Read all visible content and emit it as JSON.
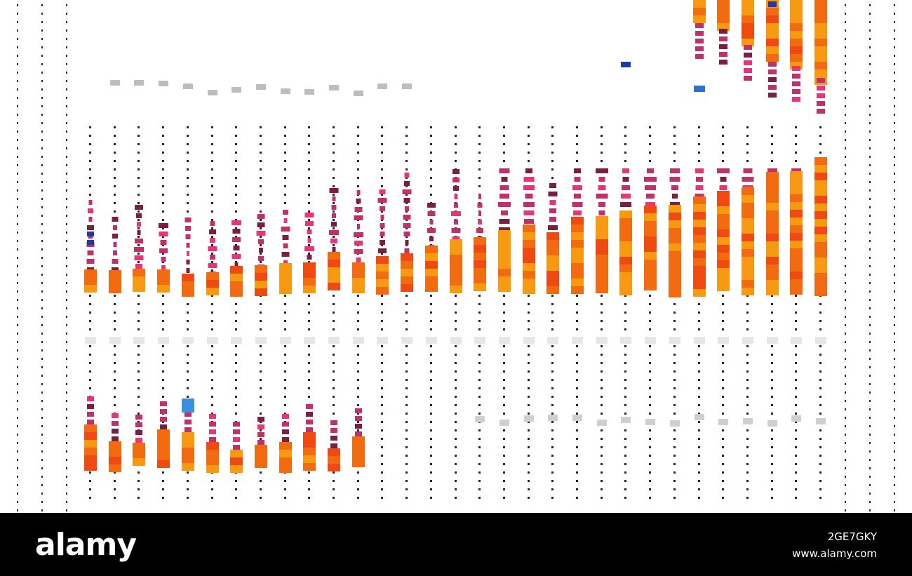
{
  "watermark": {
    "logo": "alamy",
    "image_id": "2GE7GKY",
    "url": "www.alamy.com"
  },
  "palette": {
    "background": "#ffffff",
    "footer": "#000000",
    "dot": "#3a1c22",
    "magenta": "#c0306a",
    "orange": "#f26b10",
    "amber": "#f79a12",
    "red_orange": "#ef4a12",
    "pink": "#e8357a",
    "wine": "#7a1f3d",
    "blue": "#1d3aa5",
    "grey": "#c8c8c8"
  }
}
